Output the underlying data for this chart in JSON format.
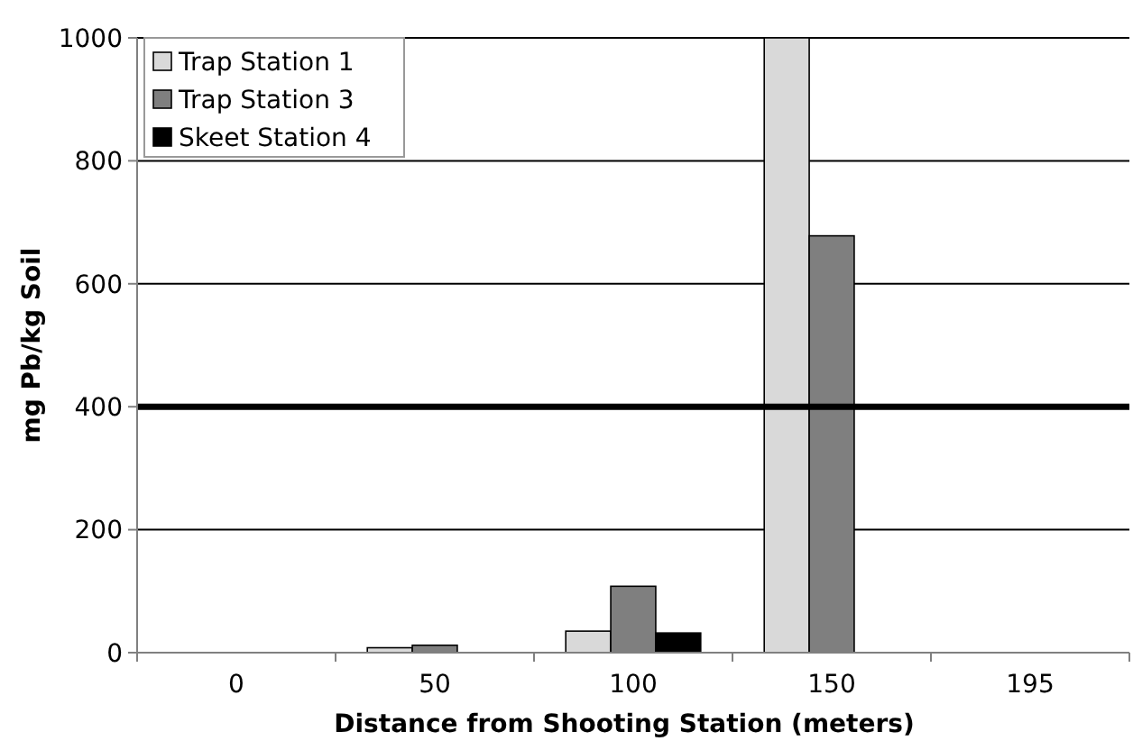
{
  "chart_data": {
    "type": "bar",
    "xlabel": "Distance from Shooting Station (meters)",
    "ylabel": "mg Pb/kg Soil",
    "categories": [
      "0",
      "50",
      "100",
      "150",
      "195"
    ],
    "series": [
      {
        "name": "Trap Station 1",
        "color": "#d9d9d9",
        "values": [
          null,
          8,
          35,
          1000,
          null
        ]
      },
      {
        "name": "Trap Station 3",
        "color": "#7f7f7f",
        "values": [
          null,
          12,
          108,
          678,
          null
        ]
      },
      {
        "name": "Skeet Station 4",
        "color": "#000000",
        "values": [
          null,
          null,
          32,
          null,
          null
        ]
      }
    ],
    "ylim": [
      0,
      1000
    ],
    "yticks": [
      0,
      200,
      400,
      600,
      800,
      1000
    ],
    "grid": "y",
    "legend": "top left",
    "ref_lines": [
      {
        "axis": "y",
        "value": 400,
        "color": "#000000"
      }
    ]
  }
}
